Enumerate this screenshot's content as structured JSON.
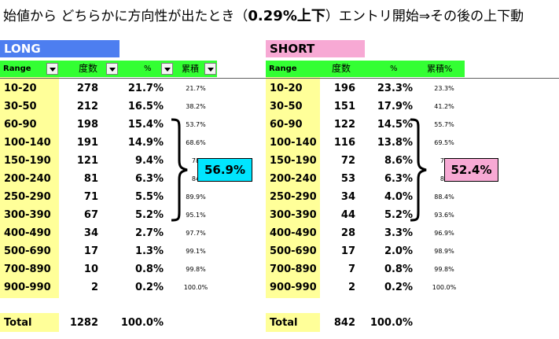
{
  "title": {
    "prefix": "始値から どちらかに方向性が出たとき（",
    "threshold": "0.29%上下",
    "suffix": "）エントリ開始⇒その後の上下動"
  },
  "long": {
    "label": "LONG",
    "headers": {
      "range": "Range",
      "count": "度数",
      "pct": "%",
      "cum": "累積"
    },
    "rows": [
      {
        "range": "10-20",
        "count": "278",
        "pct": "21.7%",
        "cum": "21.7%"
      },
      {
        "range": "30-50",
        "count": "212",
        "pct": "16.5%",
        "cum": "38.2%"
      },
      {
        "range": "60-90",
        "count": "198",
        "pct": "15.4%",
        "cum": "53.7%"
      },
      {
        "range": "100-140",
        "count": "191",
        "pct": "14.9%",
        "cum": "68.6%"
      },
      {
        "range": "150-190",
        "count": "121",
        "pct": "9.4%",
        "cum": "78"
      },
      {
        "range": "200-240",
        "count": "81",
        "pct": "6.3%",
        "cum": "84"
      },
      {
        "range": "250-290",
        "count": "71",
        "pct": "5.5%",
        "cum": "89.9%"
      },
      {
        "range": "300-390",
        "count": "67",
        "pct": "5.2%",
        "cum": "95.1%"
      },
      {
        "range": "400-490",
        "count": "34",
        "pct": "2.7%",
        "cum": "97.7%"
      },
      {
        "range": "500-690",
        "count": "17",
        "pct": "1.3%",
        "cum": "99.1%"
      },
      {
        "range": "700-890",
        "count": "10",
        "pct": "0.8%",
        "cum": "99.8%"
      },
      {
        "range": "900-990",
        "count": "2",
        "pct": "0.2%",
        "cum": "100.0%"
      }
    ],
    "total": {
      "label": "Total",
      "count": "1282",
      "pct": "100.0%"
    },
    "callout": "56.9%",
    "callout_color": "#00e5ff"
  },
  "short": {
    "label": "SHORT",
    "headers": {
      "range": "Range",
      "count": "度数",
      "pct": "%",
      "cum": "累積%"
    },
    "rows": [
      {
        "range": "10-20",
        "count": "196",
        "pct": "23.3%",
        "cum": "23.3%"
      },
      {
        "range": "30-50",
        "count": "151",
        "pct": "17.9%",
        "cum": "41.2%"
      },
      {
        "range": "60-90",
        "count": "122",
        "pct": "14.5%",
        "cum": "55.7%"
      },
      {
        "range": "100-140",
        "count": "116",
        "pct": "13.8%",
        "cum": "69.5%"
      },
      {
        "range": "150-190",
        "count": "72",
        "pct": "8.6%",
        "cum": "78"
      },
      {
        "range": "200-240",
        "count": "53",
        "pct": "6.3%",
        "cum": "84"
      },
      {
        "range": "250-290",
        "count": "34",
        "pct": "4.0%",
        "cum": "88.4%"
      },
      {
        "range": "300-390",
        "count": "44",
        "pct": "5.2%",
        "cum": "93.6%"
      },
      {
        "range": "400-490",
        "count": "28",
        "pct": "3.3%",
        "cum": "96.9%"
      },
      {
        "range": "500-690",
        "count": "17",
        "pct": "2.0%",
        "cum": "98.9%"
      },
      {
        "range": "700-890",
        "count": "7",
        "pct": "0.8%",
        "cum": "99.8%"
      },
      {
        "range": "900-990",
        "count": "2",
        "pct": "0.2%",
        "cum": "100.0%"
      }
    ],
    "total": {
      "label": "Total",
      "count": "842",
      "pct": "100.0%"
    },
    "callout": "52.4%",
    "callout_color": "#f7a9d4"
  }
}
